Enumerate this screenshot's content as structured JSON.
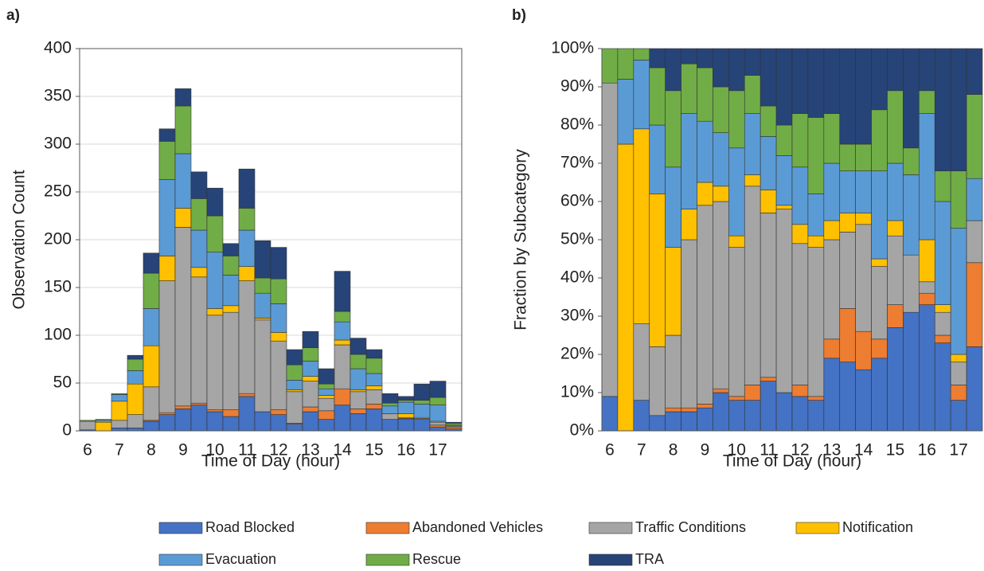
{
  "chart_data": [
    {
      "type": "stacked_bar",
      "panel_label": "a)",
      "y_label": "Observation Count",
      "x_label": "Time of Day (hour)",
      "categories": [
        "6",
        null,
        "7",
        null,
        "8",
        null,
        "9",
        null,
        "10",
        null,
        "11",
        null,
        "12",
        null,
        "13",
        null,
        "14",
        null,
        "15",
        null,
        "16",
        null,
        "17",
        null
      ],
      "ylim": [
        0,
        400
      ],
      "yticks": [
        0,
        50,
        100,
        150,
        200,
        250,
        300,
        350,
        400
      ],
      "grid": true,
      "series": [
        {
          "name": "Road Blocked",
          "color": "#4472c4",
          "values": [
            1,
            0,
            3,
            3,
            10,
            17,
            23,
            27,
            20,
            15,
            36,
            20,
            17,
            7,
            20,
            12,
            27,
            18,
            23,
            12,
            12,
            12,
            4,
            2
          ]
        },
        {
          "name": "Abandoned Vehicles",
          "color": "#ed7d31",
          "values": [
            0,
            0,
            0,
            0,
            1,
            2,
            3,
            2,
            2,
            7,
            3,
            0,
            5,
            1,
            5,
            9,
            17,
            5,
            5,
            0,
            1,
            0,
            2,
            2
          ]
        },
        {
          "name": "Traffic Conditions",
          "color": "#a5a5a5",
          "values": [
            9,
            0,
            8,
            14,
            35,
            138,
            187,
            132,
            99,
            102,
            118,
            96,
            72,
            33,
            27,
            13,
            46,
            18,
            15,
            6,
            1,
            1,
            3,
            1
          ]
        },
        {
          "name": "Notification",
          "color": "#ffc000",
          "values": [
            0,
            9,
            20,
            32,
            43,
            26,
            20,
            10,
            7,
            7,
            15,
            2,
            9,
            2,
            5,
            3,
            5,
            2,
            4,
            0,
            4,
            1,
            1,
            0
          ]
        },
        {
          "name": "Evacuation",
          "color": "#5b9bd5",
          "values": [
            0,
            2,
            7,
            14,
            39,
            80,
            57,
            39,
            59,
            32,
            38,
            26,
            30,
            10,
            16,
            7,
            19,
            22,
            13,
            8,
            12,
            14,
            17,
            1
          ]
        },
        {
          "name": "Rescue",
          "color": "#70ad47",
          "values": [
            1,
            1,
            1,
            12,
            37,
            40,
            50,
            33,
            38,
            20,
            23,
            16,
            26,
            16,
            14,
            5,
            11,
            15,
            16,
            3,
            2,
            4,
            8,
            2
          ]
        },
        {
          "name": "TRA",
          "color": "#264478",
          "values": [
            0,
            0,
            0,
            4,
            21,
            13,
            18,
            28,
            29,
            13,
            41,
            39,
            33,
            16,
            17,
            16,
            42,
            17,
            9,
            10,
            4,
            17,
            17,
            1
          ]
        }
      ]
    },
    {
      "type": "stacked_bar",
      "panel_label": "b)",
      "y_label": "Fraction by Subcategory",
      "x_label": "Time of Day (hour)",
      "categories": [
        "6",
        null,
        "7",
        null,
        "8",
        null,
        "9",
        null,
        "10",
        null,
        "11",
        null,
        "12",
        null,
        "13",
        null,
        "14",
        null,
        "15",
        null,
        "16",
        null,
        "17",
        null
      ],
      "ylim": [
        0,
        100
      ],
      "yticks": [
        {
          "value": 0,
          "label": "0%"
        },
        {
          "value": 10,
          "label": "10%"
        },
        {
          "value": 20,
          "label": "20%"
        },
        {
          "value": 30,
          "label": "30%"
        },
        {
          "value": 40,
          "label": "40%"
        },
        {
          "value": 50,
          "label": "50%"
        },
        {
          "value": 60,
          "label": "60%"
        },
        {
          "value": 70,
          "label": "70%"
        },
        {
          "value": 80,
          "label": "80%"
        },
        {
          "value": 90,
          "label": "90%"
        },
        {
          "value": 100,
          "label": "100%"
        }
      ],
      "grid": false,
      "series": [
        {
          "name": "Road Blocked",
          "color": "#4472c4",
          "values": [
            9,
            0,
            8,
            4,
            5,
            5,
            6,
            10,
            8,
            8,
            13,
            10,
            9,
            8,
            19,
            18,
            16,
            19,
            27,
            31,
            33,
            23,
            8,
            22
          ]
        },
        {
          "name": "Abandoned Vehicles",
          "color": "#ed7d31",
          "values": [
            0,
            0,
            0,
            0,
            1,
            1,
            1,
            1,
            1,
            4,
            1,
            0,
            3,
            1,
            5,
            14,
            10,
            5,
            6,
            0,
            3,
            2,
            4,
            22
          ]
        },
        {
          "name": "Traffic Conditions",
          "color": "#a5a5a5",
          "values": [
            82,
            0,
            20,
            18,
            19,
            44,
            52,
            49,
            39,
            52,
            43,
            48,
            37,
            39,
            26,
            20,
            28,
            19,
            18,
            15,
            3,
            6,
            6,
            11
          ]
        },
        {
          "name": "Notification",
          "color": "#ffc000",
          "values": [
            0,
            75,
            51,
            40,
            23,
            8,
            6,
            4,
            3,
            3,
            6,
            1,
            5,
            3,
            5,
            5,
            3,
            2,
            4,
            0,
            11,
            2,
            2,
            0
          ]
        },
        {
          "name": "Evacuation",
          "color": "#5b9bd5",
          "values": [
            0,
            17,
            18,
            18,
            21,
            25,
            16,
            14,
            23,
            16,
            14,
            13,
            15,
            11,
            15,
            11,
            11,
            23,
            15,
            21,
            33,
            27,
            33,
            11
          ]
        },
        {
          "name": "Rescue",
          "color": "#70ad47",
          "values": [
            9,
            8,
            3,
            15,
            20,
            13,
            14,
            12,
            15,
            10,
            8,
            8,
            14,
            20,
            13,
            7,
            7,
            16,
            19,
            7,
            6,
            8,
            15,
            22
          ]
        },
        {
          "name": "TRA",
          "color": "#264478",
          "values": [
            0,
            0,
            0,
            5,
            11,
            4,
            5,
            10,
            11,
            7,
            15,
            20,
            17,
            18,
            17,
            25,
            25,
            16,
            11,
            26,
            11,
            32,
            32,
            12
          ]
        }
      ]
    }
  ]
}
